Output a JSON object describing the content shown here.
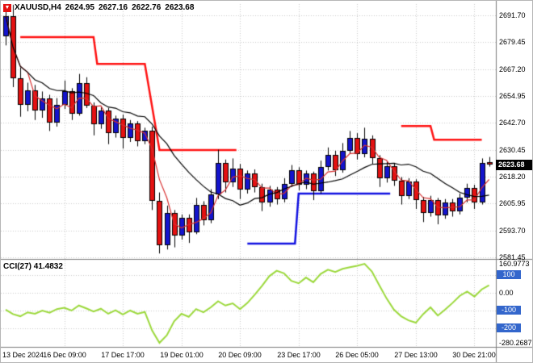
{
  "header": {
    "symbol_period": "XAUUSD,H4",
    "open": "2624.95",
    "high": "2627.16",
    "low": "2622.76",
    "close": "2623.68"
  },
  "price_axis": {
    "ticks": [
      "2691.70",
      "2679.45",
      "2667.20",
      "2654.95",
      "2642.70",
      "2630.45",
      "2618.20",
      "2605.95",
      "2593.70",
      "2581.45"
    ],
    "current_price": "2623.68"
  },
  "time_axis": {
    "labels": [
      "13 Dec 2024",
      "16 Dec 09:00",
      "17 Dec 17:00",
      "19 Dec 01:00",
      "20 Dec 09:00",
      "23 Dec 17:00",
      "26 Dec 05:00",
      "27 Dec 13:00",
      "30 Dec 21:00"
    ]
  },
  "cci_panel": {
    "label": "CCI(27) 41.4832",
    "max_label": "160.9773",
    "zero_label": "0.00",
    "min_label": "-280.2687",
    "badges": [
      "100",
      "-100",
      "-200"
    ]
  },
  "colors": {
    "background": "#FFFFFF",
    "grid": "#C9C9C9",
    "divider": "#7A7A7A",
    "bull_candle": "#1414CD",
    "bear_candle": "#E41111",
    "candle_outline": "#000000",
    "ma_fast": "#D83030",
    "ma_slow": "#000000",
    "resistance_line": "#FF1212",
    "support_line": "#1010E0",
    "cci_line": "#9BD83B",
    "level_badge": "#3366CC",
    "price_badge_bg": "#000000",
    "price_badge_text": "#FFFFFF",
    "header_icon": "#E41111",
    "axis_text": "#000000"
  },
  "chart_data": [
    {
      "type": "candlestick",
      "title": "XAUUSD,H4",
      "symbol": "XAUUSD",
      "timeframe": "H4",
      "bars_per_x_label": 8,
      "last_price": 2623.68,
      "ylim": [
        2581.45,
        2691.7
      ],
      "y_ticks": [
        2691.7,
        2679.45,
        2667.2,
        2654.95,
        2642.7,
        2630.45,
        2618.2,
        2605.95,
        2593.7,
        2581.45
      ],
      "x_labels": [
        "13 Dec 2024",
        "16 Dec 09:00",
        "17 Dec 17:00",
        "19 Dec 01:00",
        "20 Dec 09:00",
        "23 Dec 17:00",
        "26 Dec 05:00",
        "27 Dec 13:00",
        "30 Dec 21:00"
      ],
      "candles_ohlc": [
        [
          2682,
          2694.5,
          2678,
          2691.5
        ],
        [
          2691.5,
          2696.5,
          2659,
          2663
        ],
        [
          2663,
          2668,
          2645.5,
          2651
        ],
        [
          2651,
          2661,
          2648,
          2657.5
        ],
        [
          2657.5,
          2660,
          2644,
          2648.5
        ],
        [
          2648.5,
          2657,
          2645,
          2654
        ],
        [
          2654,
          2655.5,
          2639,
          2643
        ],
        [
          2643,
          2654,
          2641,
          2651
        ],
        [
          2651,
          2662,
          2649,
          2657
        ],
        [
          2657,
          2658.5,
          2644,
          2647
        ],
        [
          2647,
          2665,
          2646,
          2661
        ],
        [
          2661,
          2663.5,
          2649.5,
          2650.5
        ],
        [
          2650.5,
          2652,
          2637,
          2642
        ],
        [
          2642,
          2650,
          2640,
          2648.5
        ],
        [
          2648.5,
          2649.5,
          2633,
          2638
        ],
        [
          2638,
          2646,
          2636,
          2644.5
        ],
        [
          2644.5,
          2646.5,
          2631,
          2636
        ],
        [
          2636,
          2644,
          2634,
          2642.5
        ],
        [
          2642.5,
          2643.5,
          2632,
          2634.5
        ],
        [
          2634.5,
          2640.5,
          2633,
          2639
        ],
        [
          2639,
          2641,
          2603,
          2607
        ],
        [
          2607,
          2611,
          2583.2,
          2587
        ],
        [
          2587,
          2605,
          2585,
          2601.5
        ],
        [
          2601.5,
          2603,
          2586,
          2591.5
        ],
        [
          2591.5,
          2601,
          2589.5,
          2599.5
        ],
        [
          2599.5,
          2601,
          2588,
          2593
        ],
        [
          2593,
          2608.5,
          2592,
          2605.5
        ],
        [
          2605.5,
          2607,
          2596,
          2598.5
        ],
        [
          2598.5,
          2612.5,
          2597,
          2610
        ],
        [
          2610,
          2630.5,
          2608,
          2624.5
        ],
        [
          2624.5,
          2626,
          2611,
          2615.5
        ],
        [
          2615.5,
          2626.5,
          2613.5,
          2622
        ],
        [
          2622,
          2624,
          2608,
          2612.5
        ],
        [
          2612.5,
          2621,
          2610.5,
          2619.5
        ],
        [
          2619.5,
          2621.5,
          2611,
          2613.5
        ],
        [
          2613.5,
          2615,
          2602.5,
          2606.5
        ],
        [
          2606.5,
          2614,
          2604.5,
          2612.5
        ],
        [
          2612.5,
          2613.5,
          2605.5,
          2608
        ],
        [
          2608,
          2617.5,
          2606.5,
          2615
        ],
        [
          2615,
          2623.5,
          2613.5,
          2621
        ],
        [
          2621,
          2622.5,
          2612,
          2614.5
        ],
        [
          2614.5,
          2621,
          2612.5,
          2619.5
        ],
        [
          2619.5,
          2620.5,
          2607.5,
          2611.5
        ],
        [
          2611.5,
          2625.5,
          2610.5,
          2622.5
        ],
        [
          2622.5,
          2631.5,
          2621,
          2628
        ],
        [
          2628,
          2630,
          2618.5,
          2621
        ],
        [
          2621,
          2633.5,
          2620,
          2630
        ],
        [
          2630,
          2639,
          2628.5,
          2636
        ],
        [
          2636,
          2638,
          2626,
          2628.5
        ],
        [
          2628.5,
          2640.5,
          2627,
          2635.5
        ],
        [
          2635.5,
          2637,
          2624,
          2626.5
        ],
        [
          2626.5,
          2628,
          2613.5,
          2617.5
        ],
        [
          2617.5,
          2625,
          2615.5,
          2623
        ],
        [
          2623,
          2624.5,
          2614,
          2616.5
        ],
        [
          2616.5,
          2618,
          2605.5,
          2609.5
        ],
        [
          2609.5,
          2617.5,
          2608,
          2616
        ],
        [
          2616,
          2617,
          2603.5,
          2607.5
        ],
        [
          2607.5,
          2609,
          2597.5,
          2601.5
        ],
        [
          2601.5,
          2609.5,
          2600,
          2607.5
        ],
        [
          2607.5,
          2608.5,
          2596.5,
          2600.5
        ],
        [
          2600.5,
          2608,
          2599,
          2606.5
        ],
        [
          2606.5,
          2608,
          2600,
          2602.5
        ],
        [
          2602.5,
          2610.5,
          2601,
          2608.5
        ],
        [
          2608.5,
          2615,
          2606.5,
          2613
        ],
        [
          2613,
          2614.5,
          2603.5,
          2606.5
        ],
        [
          2606.5,
          2626.5,
          2605.5,
          2624.5
        ],
        [
          2624.95,
          2627.16,
          2622.76,
          2623.68
        ]
      ],
      "overlays": {
        "ma_fast": {
          "type": "sma",
          "period": 4
        },
        "ma_slow": {
          "type": "sma",
          "period": 13
        },
        "resistance_chains": [
          [
            [
              2,
              12,
              2681.8
            ],
            [
              12.5,
              19,
              2669.6
            ],
            [
              21,
              31.5,
              2630.3
            ]
          ],
          [
            [
              54,
              58,
              2641.3
            ],
            [
              58.5,
              65,
              2635.0
            ]
          ]
        ],
        "support_chains": [
          [
            [
              33,
              39.5,
              2587.7
            ],
            [
              40,
              52.5,
              2610.5
            ]
          ]
        ]
      }
    },
    {
      "type": "line",
      "name": "CCI",
      "period": 27,
      "current_value": 41.4832,
      "ylim": [
        -280.2687,
        160.9773
      ],
      "zero": 0,
      "levels": [
        100,
        -100,
        -200
      ],
      "values": [
        -95,
        -120,
        -132,
        -110,
        -118,
        -100,
        -112,
        -92,
        -85,
        -100,
        -72,
        -88,
        -105,
        -90,
        -118,
        -98,
        -122,
        -100,
        -118,
        -108,
        -212,
        -280.2687,
        -238,
        -160,
        -118,
        -135,
        -92,
        -110,
        -82,
        -48,
        -72,
        -60,
        -92,
        -58,
        -12,
        38,
        92,
        122,
        108,
        66,
        52,
        84,
        58,
        104,
        128,
        115,
        133,
        142,
        150,
        160.9773,
        118,
        42,
        -32,
        -95,
        -132,
        -155,
        -168,
        -120,
        -82,
        -128,
        -95,
        -58,
        -18,
        6,
        -22,
        18,
        41.4832
      ]
    }
  ]
}
